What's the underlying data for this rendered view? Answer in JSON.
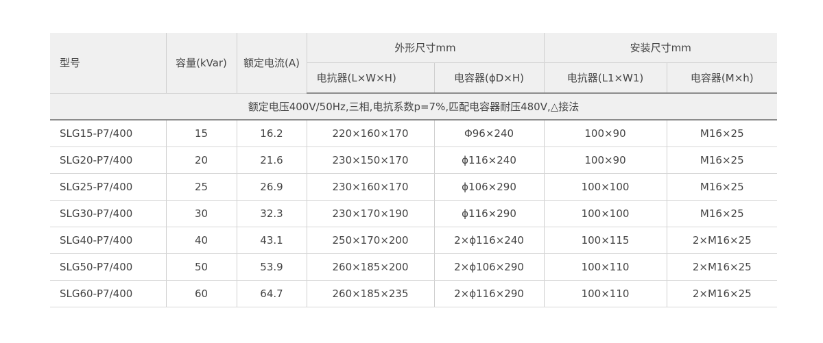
{
  "header": {
    "model": "型号",
    "capacity": "容量(kVar)",
    "current": "额定电流(A)",
    "outer_dims": "外形尺寸mm",
    "install_dims": "安装尺寸mm",
    "sub": [
      "电抗器(L×W×H)",
      "电容器(ϕD×H)",
      "电抗器(L1×W1)",
      "电容器(M×h)"
    ]
  },
  "note": "额定电压400V/50Hz,三相,电抗系数p=7%,匹配电容器耐压480V,△接法",
  "rows": [
    [
      "SLG15-P7/400",
      "15",
      "16.2",
      "220×160×170",
      "Φ96×240",
      "100×90",
      "M16×25"
    ],
    [
      "SLG20-P7/400",
      "20",
      "21.6",
      "230×150×170",
      "ϕ116×240",
      "100×90",
      "M16×25"
    ],
    [
      "SLG25-P7/400",
      "25",
      "26.9",
      "230×160×170",
      "ϕ106×290",
      "100×100",
      "M16×25"
    ],
    [
      "SLG30-P7/400",
      "30",
      "32.3",
      "230×170×190",
      "ϕ116×290",
      "100×100",
      "M16×25"
    ],
    [
      "SLG40-P7/400",
      "40",
      "43.1",
      "250×170×200",
      "2×ϕ116×240",
      "100×115",
      "2×M16×25"
    ],
    [
      "SLG50-P7/400",
      "50",
      "53.9",
      "260×185×200",
      "2×ϕ106×290",
      "100×110",
      "2×M16×25"
    ],
    [
      "SLG60-P7/400",
      "60",
      "64.7",
      "260×185×235",
      "2×ϕ116×290",
      "100×110",
      "2×M16×25"
    ]
  ]
}
